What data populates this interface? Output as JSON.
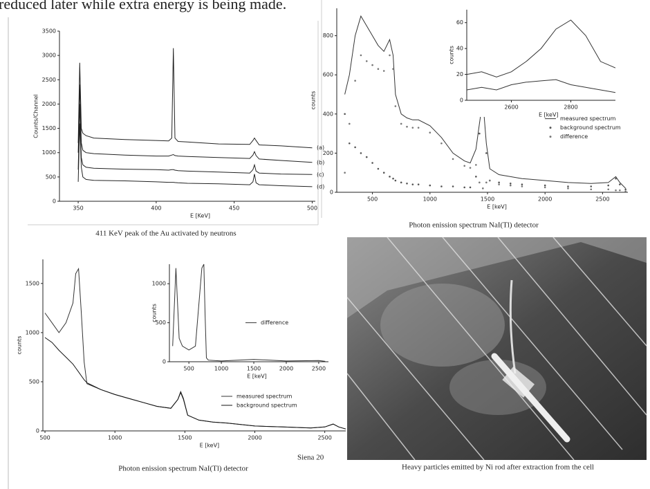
{
  "header": {
    "text": "reduced later while extra energy is being made."
  },
  "footer": {
    "text": "Siena 20"
  },
  "photo": {
    "caption": "Heavy particles emitted by Ni rod after  extraction from the cell"
  },
  "chart_data": [
    {
      "type": "line",
      "caption": "411 KeV  peak of the Au activated by neutrons",
      "x_label": "E [KeV]",
      "y_label": "Counts/Channel",
      "x": [
        350,
        351,
        352,
        353,
        355,
        360,
        380,
        400,
        408,
        410,
        411,
        412,
        414,
        420,
        440,
        460,
        462,
        463,
        464,
        466,
        480,
        500
      ],
      "xlim": [
        338,
        502
      ],
      "xticks": [
        350,
        400,
        450,
        500
      ],
      "ylim": [
        0,
        3500
      ],
      "yticks": [
        0,
        500,
        1000,
        1500,
        2000,
        2500,
        3000,
        3500
      ],
      "legend": "line-end",
      "series": [
        {
          "name": "(a)",
          "color": "#222222",
          "values": [
            1200,
            2850,
            1500,
            1400,
            1350,
            1300,
            1270,
            1250,
            1240,
            1300,
            3150,
            1300,
            1230,
            1220,
            1180,
            1170,
            1250,
            1300,
            1250,
            1160,
            1140,
            1100
          ]
        },
        {
          "name": "(b)",
          "color": "#222222",
          "values": [
            1000,
            2400,
            1200,
            1050,
            1000,
            980,
            950,
            930,
            930,
            950,
            960,
            940,
            930,
            920,
            900,
            880,
            950,
            1020,
            940,
            870,
            840,
            800
          ]
        },
        {
          "name": "(c)",
          "color": "#222222",
          "values": [
            650,
            2000,
            900,
            750,
            700,
            680,
            660,
            650,
            640,
            650,
            650,
            640,
            630,
            620,
            600,
            580,
            650,
            750,
            620,
            580,
            560,
            550
          ]
        },
        {
          "name": "(d)",
          "color": "#222222",
          "values": [
            400,
            1600,
            700,
            500,
            450,
            430,
            420,
            400,
            390,
            390,
            390,
            385,
            380,
            370,
            360,
            340,
            400,
            560,
            380,
            340,
            320,
            300
          ]
        }
      ]
    },
    {
      "type": "line",
      "caption": "Photon enission spectrum  NaI(Tl) detector",
      "x_label": "E [keV]",
      "y_label": "counts",
      "x": [
        260,
        300,
        350,
        400,
        450,
        500,
        550,
        600,
        650,
        680,
        700,
        750,
        800,
        850,
        900,
        1000,
        1100,
        1200,
        1300,
        1350,
        1400,
        1430,
        1460,
        1490,
        1520,
        1600,
        1700,
        1800,
        2000,
        2200,
        2400,
        2550,
        2615,
        2650,
        2700
      ],
      "xlim": [
        190,
        2720
      ],
      "xticks": [
        500,
        1000,
        1500,
        2000,
        2500
      ],
      "ylim": [
        0,
        940
      ],
      "yticks": [
        0,
        200,
        400,
        600,
        800
      ],
      "legend": "center-right",
      "series": [
        {
          "name": "measured spectrum",
          "color": "#333333",
          "style": "line",
          "values": [
            500,
            600,
            800,
            900,
            850,
            800,
            750,
            720,
            780,
            700,
            500,
            400,
            380,
            370,
            370,
            340,
            280,
            200,
            160,
            150,
            220,
            350,
            470,
            250,
            120,
            90,
            80,
            70,
            60,
            50,
            45,
            50,
            80,
            50,
            20
          ]
        },
        {
          "name": "background spectrum",
          "color": "#555555",
          "style": "points",
          "values": [
            400,
            250,
            230,
            200,
            180,
            150,
            120,
            100,
            80,
            70,
            60,
            50,
            45,
            40,
            40,
            35,
            30,
            30,
            25,
            25,
            80,
            300,
            450,
            200,
            60,
            50,
            45,
            40,
            35,
            30,
            30,
            35,
            70,
            40,
            15
          ]
        },
        {
          "name": "difference",
          "color": "#777777",
          "style": "points",
          "values": [
            100,
            350,
            570,
            700,
            670,
            650,
            630,
            620,
            700,
            630,
            440,
            350,
            335,
            330,
            330,
            305,
            250,
            170,
            135,
            125,
            140,
            50,
            20,
            50,
            60,
            40,
            35,
            30,
            25,
            20,
            15,
            15,
            10,
            10,
            5
          ]
        }
      ]
    },
    {
      "type": "line",
      "x_label": "E [keV]",
      "y_label": "counts",
      "x": [
        2450,
        2500,
        2550,
        2600,
        2650,
        2700,
        2750,
        2800,
        2850,
        2900,
        2950
      ],
      "xlim": [
        2450,
        2950
      ],
      "xticks": [
        2600,
        2800
      ],
      "ylim": [
        0,
        70
      ],
      "yticks": [
        0,
        20,
        40,
        60
      ],
      "series": [
        {
          "color": "#333333",
          "style": "line",
          "values": [
            20,
            22,
            18,
            22,
            30,
            40,
            55,
            62,
            50,
            30,
            25
          ]
        },
        {
          "color": "#333333",
          "style": "line",
          "values": [
            8,
            10,
            8,
            12,
            14,
            15,
            16,
            12,
            10,
            8,
            6
          ]
        }
      ]
    },
    {
      "type": "line",
      "caption": "Photon enission spectrum  NaI(Tl) detector",
      "x_label": "E [keV]",
      "y_label": "counts",
      "x": [
        500,
        550,
        600,
        650,
        700,
        720,
        740,
        760,
        780,
        800,
        900,
        1000,
        1100,
        1200,
        1300,
        1400,
        1450,
        1470,
        1490,
        1520,
        1600,
        1700,
        1800,
        2000,
        2200,
        2400,
        2500,
        2560,
        2600,
        2650
      ],
      "xlim": [
        485,
        2650
      ],
      "xticks": [
        500,
        1000,
        1500,
        2000,
        2500
      ],
      "ylim": [
        0,
        1745
      ],
      "yticks": [
        0,
        500,
        1000,
        1500
      ],
      "legend": "lower-right",
      "series": [
        {
          "name": "measured spectrum",
          "color": "#333333",
          "style": "line",
          "values": [
            1200,
            1100,
            1000,
            1100,
            1300,
            1600,
            1650,
            1200,
            700,
            480,
            420,
            370,
            330,
            290,
            250,
            230,
            320,
            400,
            330,
            160,
            110,
            90,
            80,
            50,
            40,
            30,
            40,
            70,
            40,
            20
          ]
        },
        {
          "name": "background spectrum",
          "color": "#111111",
          "style": "line",
          "values": [
            950,
            900,
            820,
            750,
            680,
            640,
            600,
            560,
            520,
            490,
            420,
            370,
            330,
            290,
            250,
            230,
            320,
            390,
            320,
            160,
            110,
            90,
            80,
            50,
            40,
            30,
            40,
            70,
            40,
            20
          ]
        }
      ]
    },
    {
      "type": "line",
      "x_label": "E [keV]",
      "y_label": "counts",
      "x": [
        250,
        300,
        350,
        400,
        500,
        600,
        700,
        730,
        750,
        770,
        800,
        1000,
        1500,
        2000,
        2500,
        2600
      ],
      "xlim": [
        200,
        2650
      ],
      "xticks": [
        500,
        1000,
        1500,
        2000,
        2500
      ],
      "ylim": [
        0,
        1250
      ],
      "yticks": [
        0,
        500,
        1000
      ],
      "legend": "center-right",
      "series": [
        {
          "name": "difference",
          "color": "#333333",
          "style": "line",
          "values": [
            200,
            1200,
            300,
            200,
            150,
            200,
            1200,
            1250,
            600,
            50,
            20,
            10,
            30,
            10,
            15,
            5
          ]
        }
      ]
    }
  ]
}
